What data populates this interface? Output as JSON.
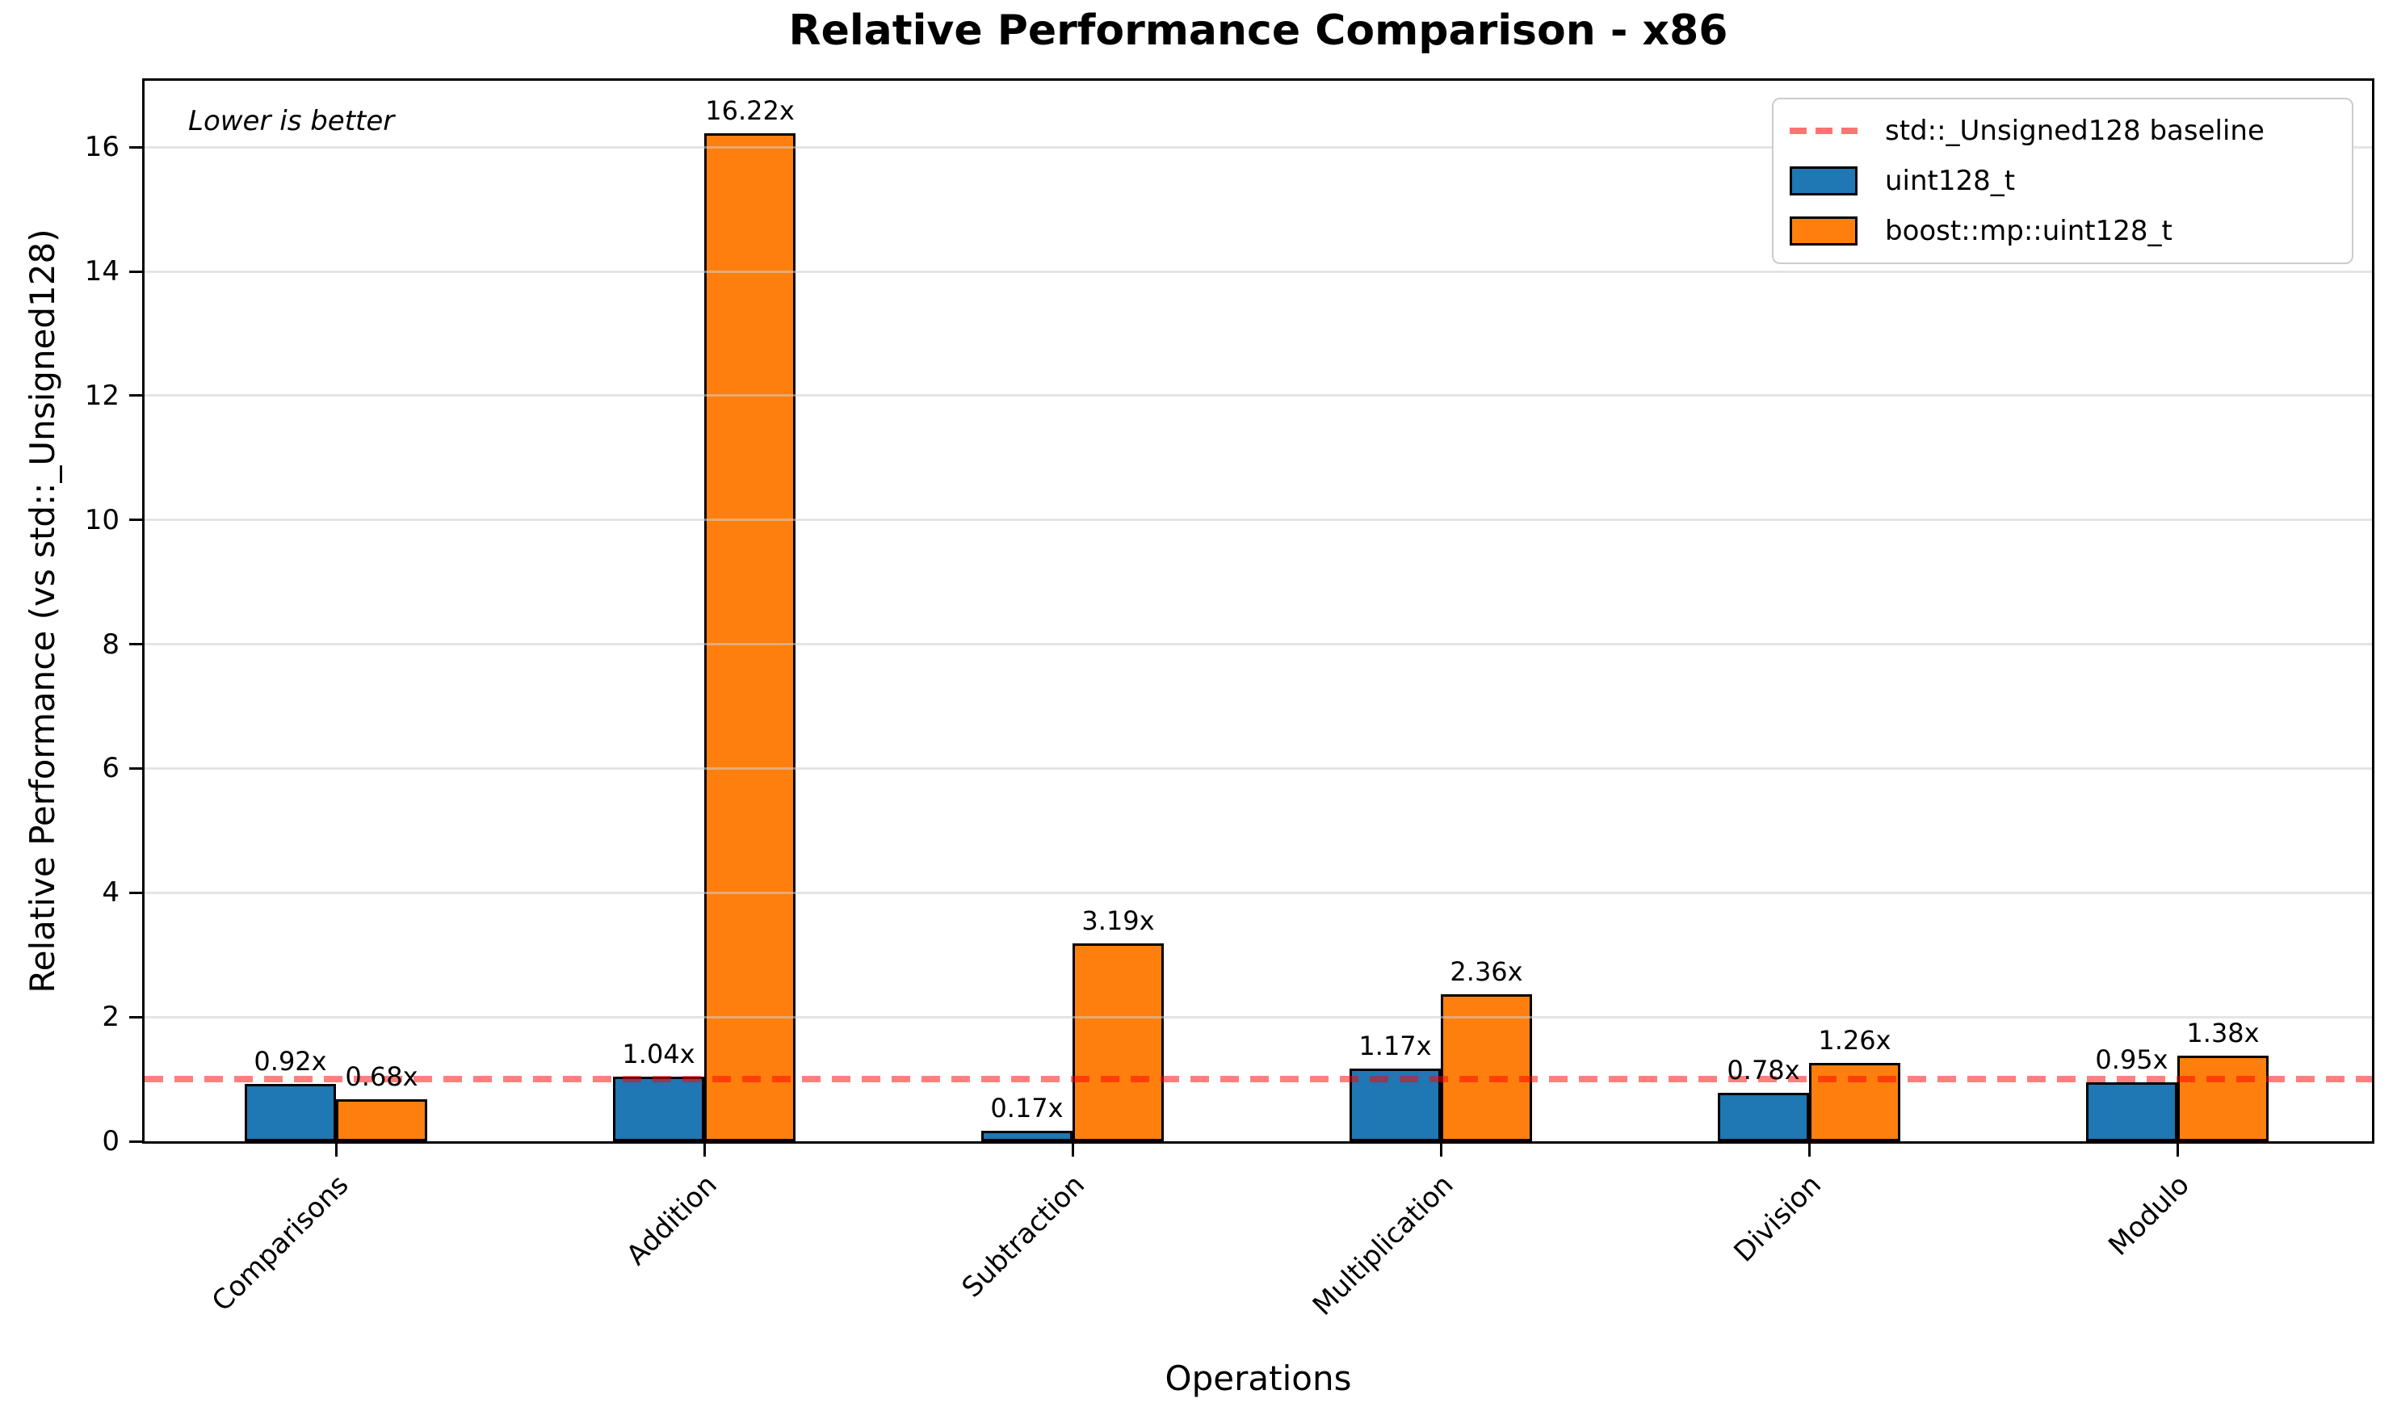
{
  "chart_data": {
    "type": "bar",
    "title": "Relative Performance Comparison - x86",
    "xlabel": "Operations",
    "ylabel": "Relative Performance (vs std::_Unsigned128)",
    "annotation": "Lower is better",
    "categories": [
      "Comparisons",
      "Addition",
      "Subtraction",
      "Multiplication",
      "Division",
      "Modulo"
    ],
    "series": [
      {
        "name": "uint128_t",
        "color": "#1f77b4",
        "values": [
          0.92,
          1.04,
          0.17,
          1.17,
          0.78,
          0.95
        ],
        "value_labels": [
          "0.92x",
          "1.04x",
          "0.17x",
          "1.17x",
          "0.78x",
          "0.95x"
        ]
      },
      {
        "name": "boost::mp::uint128_t",
        "color": "#ff7f0e",
        "values": [
          0.68,
          16.22,
          3.19,
          2.36,
          1.26,
          1.38
        ],
        "value_labels": [
          "0.68x",
          "16.22x",
          "3.19x",
          "2.36x",
          "1.26x",
          "1.38x"
        ]
      }
    ],
    "baseline": {
      "label": "std::_Unsigned128 baseline",
      "value": 1,
      "color": "#ff8080",
      "style": "dashed"
    },
    "yticks": [
      0,
      2,
      4,
      6,
      8,
      10,
      12,
      14,
      16
    ],
    "ylim": [
      0,
      17.07
    ],
    "grid": true,
    "legend_position": "upper right"
  }
}
